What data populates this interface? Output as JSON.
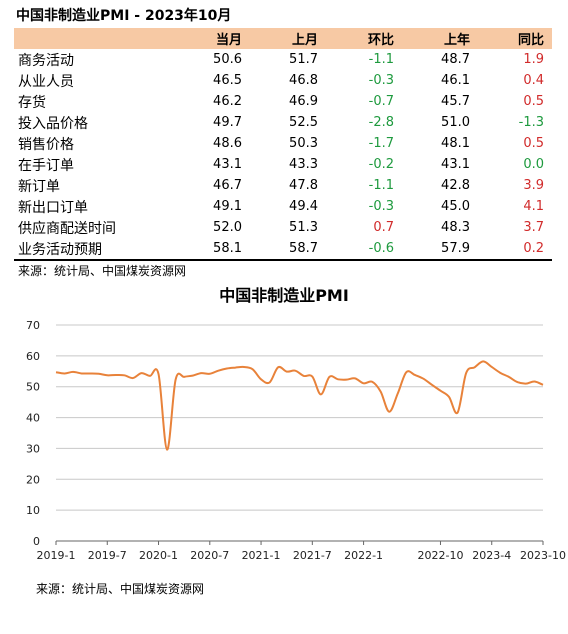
{
  "table": {
    "title": "中国非制造业PMI - 2023年10月",
    "headers": [
      "",
      "当月",
      "上月",
      "环比",
      "上年",
      "同比"
    ],
    "rows": [
      {
        "name": "商务活动",
        "cur": "50.6",
        "prev": "51.7",
        "mom": "-1.1",
        "ly": "48.7",
        "yoy": "1.9"
      },
      {
        "name": "从业人员",
        "cur": "46.5",
        "prev": "46.8",
        "mom": "-0.3",
        "ly": "46.1",
        "yoy": "0.4"
      },
      {
        "name": "存货",
        "cur": "46.2",
        "prev": "46.9",
        "mom": "-0.7",
        "ly": "45.7",
        "yoy": "0.5"
      },
      {
        "name": "投入品价格",
        "cur": "49.7",
        "prev": "52.5",
        "mom": "-2.8",
        "ly": "51.0",
        "yoy": "-1.3"
      },
      {
        "name": "销售价格",
        "cur": "48.6",
        "prev": "50.3",
        "mom": "-1.7",
        "ly": "48.1",
        "yoy": "0.5"
      },
      {
        "name": "在手订单",
        "cur": "43.1",
        "prev": "43.3",
        "mom": "-0.2",
        "ly": "43.1",
        "yoy": "0.0"
      },
      {
        "name": "新订单",
        "cur": "46.7",
        "prev": "47.8",
        "mom": "-1.1",
        "ly": "42.8",
        "yoy": "3.9"
      },
      {
        "name": "新出口订单",
        "cur": "49.1",
        "prev": "49.4",
        "mom": "-0.3",
        "ly": "45.0",
        "yoy": "4.1"
      },
      {
        "name": "供应商配送时间",
        "cur": "52.0",
        "prev": "51.3",
        "mom": "0.7",
        "ly": "48.3",
        "yoy": "3.7"
      },
      {
        "name": "业务活动预期",
        "cur": "58.1",
        "prev": "58.7",
        "mom": "-0.6",
        "ly": "57.9",
        "yoy": "0.2"
      }
    ],
    "source": "来源：统计局、中国煤炭资源网",
    "colors": {
      "header_bg": "#f7c9a4",
      "positive": "#d12b2b",
      "negative": "#1e9a3e"
    }
  },
  "chart_data": {
    "type": "line",
    "title": "中国非制造业PMI",
    "source": "来源：统计局、中国煤炭资源网",
    "xlabel": "",
    "ylabel": "",
    "ylim": [
      0,
      70
    ],
    "yticks": [
      0,
      10,
      20,
      30,
      40,
      50,
      60,
      70
    ],
    "xticks": [
      "2019-1",
      "2019-7",
      "2020-1",
      "2020-7",
      "2021-1",
      "2021-7",
      "2022-1",
      "2022-10",
      "2023-4",
      "2023-10"
    ],
    "xtick_months": [
      0,
      6,
      12,
      18,
      24,
      30,
      36,
      45,
      51,
      57
    ],
    "grid": "horizontal",
    "line_color": "#e8823a",
    "x": [
      "2019-01",
      "2019-02",
      "2019-03",
      "2019-04",
      "2019-05",
      "2019-06",
      "2019-07",
      "2019-08",
      "2019-09",
      "2019-10",
      "2019-11",
      "2019-12",
      "2020-01",
      "2020-02",
      "2020-03",
      "2020-04",
      "2020-05",
      "2020-06",
      "2020-07",
      "2020-08",
      "2020-09",
      "2020-10",
      "2020-11",
      "2020-12",
      "2021-01",
      "2021-02",
      "2021-03",
      "2021-04",
      "2021-05",
      "2021-06",
      "2021-07",
      "2021-08",
      "2021-09",
      "2021-10",
      "2021-11",
      "2021-12",
      "2022-01",
      "2022-02",
      "2022-03",
      "2022-04",
      "2022-05",
      "2022-06",
      "2022-07",
      "2022-08",
      "2022-09",
      "2022-10",
      "2022-11",
      "2022-12",
      "2023-01",
      "2023-02",
      "2023-03",
      "2023-04",
      "2023-05",
      "2023-06",
      "2023-07",
      "2023-08",
      "2023-09",
      "2023-10"
    ],
    "values": [
      54.7,
      54.3,
      54.8,
      54.3,
      54.3,
      54.2,
      53.7,
      53.8,
      53.7,
      52.8,
      54.4,
      53.5,
      54.1,
      29.6,
      52.3,
      53.2,
      53.6,
      54.4,
      54.2,
      55.2,
      55.9,
      56.2,
      56.4,
      55.7,
      52.4,
      51.4,
      56.3,
      54.9,
      55.2,
      53.5,
      53.3,
      47.5,
      53.2,
      52.4,
      52.3,
      52.7,
      51.1,
      51.6,
      48.4,
      41.9,
      47.8,
      54.7,
      53.8,
      52.6,
      50.6,
      48.7,
      46.7,
      41.6,
      54.4,
      56.3,
      58.2,
      56.4,
      54.5,
      53.2,
      51.5,
      51.0,
      51.7,
      50.6
    ]
  }
}
